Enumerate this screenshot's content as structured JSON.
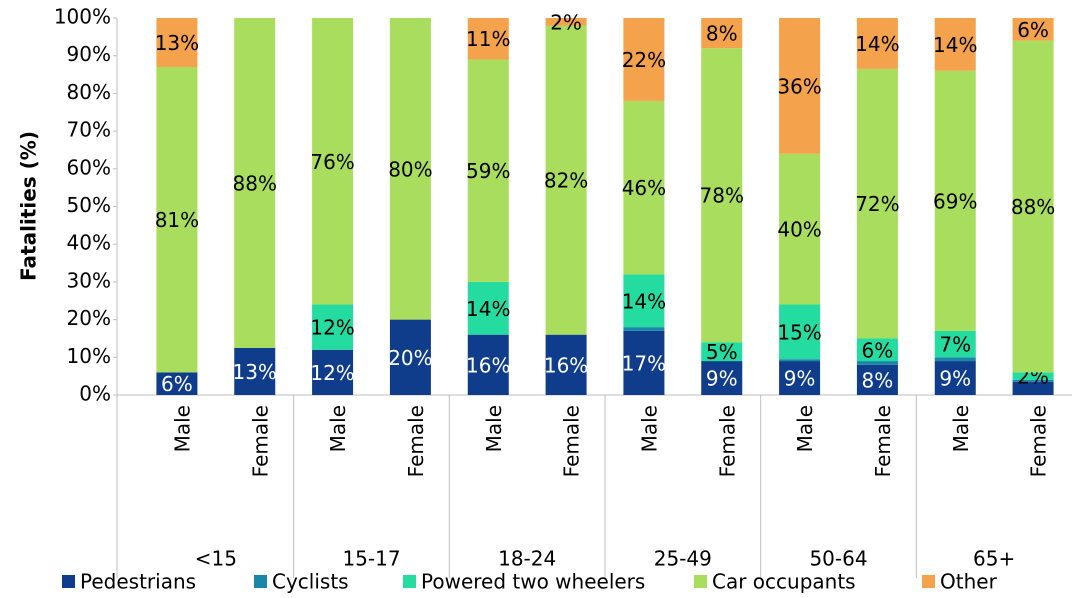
{
  "chart_data": {
    "type": "bar",
    "stacked": true,
    "ylabel": "Fatalities (%)",
    "categories": [
      "Male",
      "Female",
      "Male",
      "Female",
      "Male",
      "Female",
      "Male",
      "Female",
      "Male",
      "Female",
      "Male",
      "Female"
    ],
    "groups": [
      "<15",
      "15-17",
      "18-24",
      "25-49",
      "50-64",
      "65+"
    ],
    "ylim": [
      0,
      100
    ],
    "yticks": [
      {
        "value": 0,
        "label": "0%"
      },
      {
        "value": 10,
        "label": "10%"
      },
      {
        "value": 20,
        "label": "20%"
      },
      {
        "value": 30,
        "label": "30%"
      },
      {
        "value": 40,
        "label": "40%"
      },
      {
        "value": 50,
        "label": "50%"
      },
      {
        "value": 60,
        "label": "60%"
      },
      {
        "value": 70,
        "label": "70%"
      },
      {
        "value": 80,
        "label": "80%"
      },
      {
        "value": 90,
        "label": "90%"
      },
      {
        "value": 100,
        "label": "100%"
      }
    ],
    "legend": "bottom",
    "series": [
      {
        "name": "Pedestrians",
        "color": "#0f3d8c",
        "label_color": "#ffffff",
        "values": [
          6,
          12.5,
          12,
          20,
          16,
          16,
          17,
          9,
          9,
          8,
          9,
          3.5
        ],
        "value_labels": [
          "6%",
          "13%",
          "12%",
          "20%",
          "16%",
          "16%",
          "17%",
          "9%",
          "9%",
          "8%",
          "9%",
          null
        ]
      },
      {
        "name": "Cyclists",
        "color": "#1a86a8",
        "label_color": "#000000",
        "values": [
          0,
          0,
          0,
          0,
          0,
          0,
          1,
          0,
          0.5,
          1,
          1,
          0.5
        ],
        "value_labels": [
          null,
          null,
          null,
          null,
          null,
          null,
          null,
          null,
          null,
          null,
          null,
          null
        ]
      },
      {
        "name": "Powered two wheelers",
        "color": "#25dca0",
        "label_color": "#000000",
        "values": [
          0,
          0,
          12,
          0,
          14,
          0,
          14,
          5,
          14.5,
          6,
          7,
          2
        ],
        "value_labels": [
          null,
          null,
          "12%",
          null,
          "14%",
          null,
          "14%",
          "5%",
          "15%",
          "6%",
          "7%",
          "2%"
        ]
      },
      {
        "name": "Car occupants",
        "color": "#a9dd5e",
        "label_color": "#000000",
        "values": [
          81,
          87.5,
          76,
          80,
          59,
          82,
          46,
          78,
          40,
          71.5,
          69,
          88
        ],
        "value_labels": [
          "81%",
          "88%",
          "76%",
          "80%",
          "59%",
          "82%",
          "46%",
          "78%",
          "40%",
          "72%",
          "69%",
          "88%"
        ]
      },
      {
        "name": "Other",
        "color": "#f5a24c",
        "label_color": "#000000",
        "values": [
          13,
          0,
          0,
          0,
          11,
          2,
          22,
          8,
          36,
          13.5,
          14,
          6
        ],
        "value_labels": [
          "13%",
          null,
          null,
          null,
          "11%",
          "2%",
          "22%",
          "8%",
          "36%",
          "14%",
          "14%",
          "6%"
        ]
      }
    ]
  }
}
